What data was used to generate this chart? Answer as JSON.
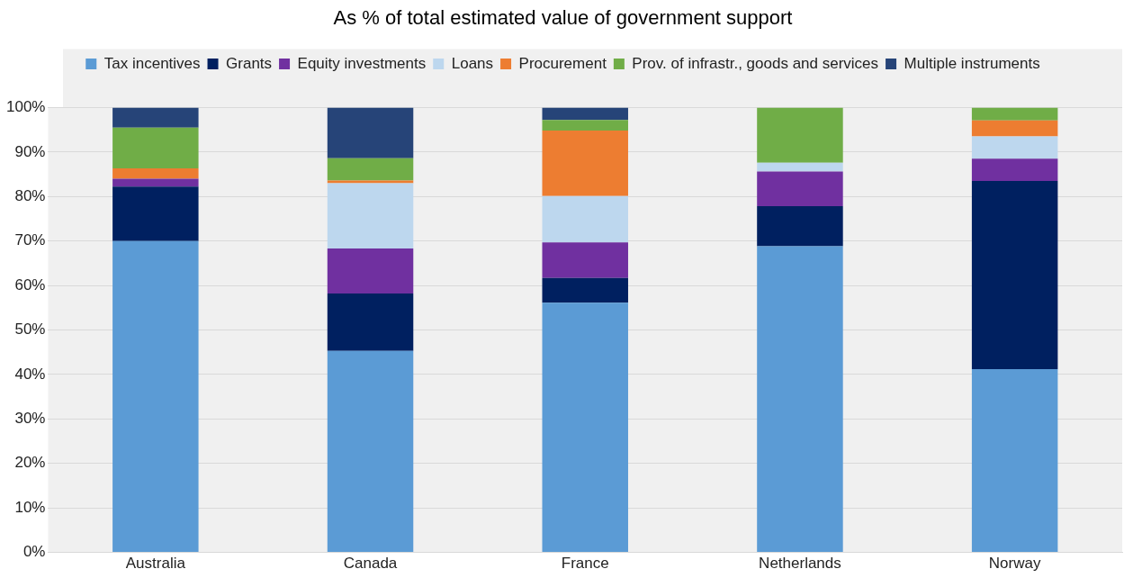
{
  "chart_data": {
    "type": "bar",
    "title": "As % of total estimated value of government support",
    "stacked": true,
    "categories": [
      "Australia",
      "Canada",
      "France",
      "Netherlands",
      "Norway"
    ],
    "series": [
      {
        "name": "Tax incentives",
        "color": "#5b9bd5",
        "values": [
          70,
          45.3,
          56.1,
          68.8,
          41.2
        ]
      },
      {
        "name": "Grants",
        "color": "#002060",
        "values": [
          12.2,
          12.9,
          5.6,
          9.0,
          42.3
        ]
      },
      {
        "name": "Equity investments",
        "color": "#7030a0",
        "values": [
          1.8,
          10.1,
          8.0,
          7.8,
          5.0
        ]
      },
      {
        "name": "Loans",
        "color": "#bdd7ee",
        "values": [
          0,
          14.7,
          10.4,
          2.0,
          5.0
        ]
      },
      {
        "name": "Procurement",
        "color": "#ed7d31",
        "values": [
          2.3,
          0.6,
          14.7,
          0,
          3.6
        ]
      },
      {
        "name": "Prov. of infrastr., goods and services",
        "color": "#70ad47",
        "values": [
          9.2,
          5.0,
          2.4,
          12.4,
          2.9
        ]
      },
      {
        "name": "Multiple instruments",
        "color": "#264478",
        "values": [
          4.5,
          11.4,
          2.8,
          0,
          0
        ]
      }
    ],
    "ylim": [
      0,
      100
    ],
    "yticks": [
      {
        "value": 0,
        "label": "0%"
      },
      {
        "value": 10,
        "label": "10%"
      },
      {
        "value": 20,
        "label": "20%"
      },
      {
        "value": 30,
        "label": "30%"
      },
      {
        "value": 40,
        "label": "40%"
      },
      {
        "value": 50,
        "label": "50%"
      },
      {
        "value": 60,
        "label": "60%"
      },
      {
        "value": 70,
        "label": "70%"
      },
      {
        "value": 80,
        "label": "80%"
      },
      {
        "value": 90,
        "label": "90%"
      },
      {
        "value": 100,
        "label": "100%"
      }
    ],
    "grid": "y",
    "legend": "top"
  }
}
